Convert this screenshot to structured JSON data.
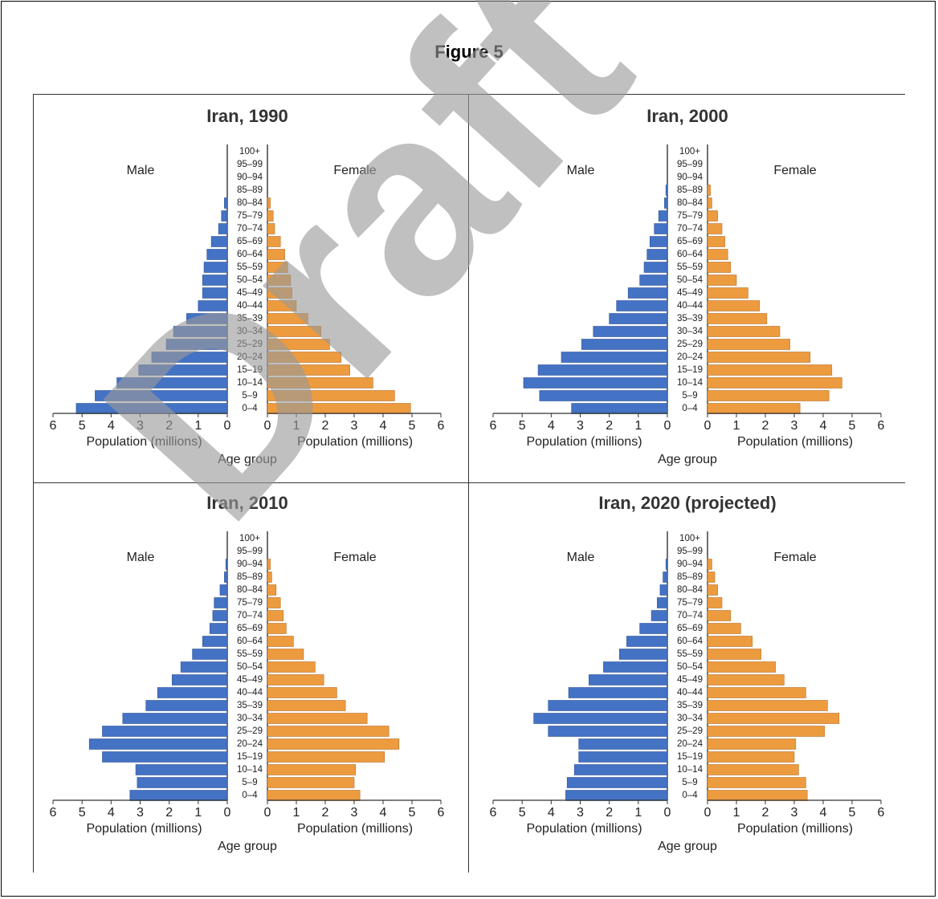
{
  "figure_title": "Figure 5",
  "watermark": "Draft",
  "colors": {
    "male": "#4472c4",
    "female": "#ed9b3f",
    "text": "#222222",
    "watermark": "#9a9a9a"
  },
  "chart_data": [
    {
      "type": "bar",
      "title": "Iran, 1990",
      "male_label": "Male",
      "female_label": "Female",
      "xlabel_left": "Population (millions)",
      "xlabel_right": "Population (millions)",
      "center_label": "Age group",
      "xlim": [
        0,
        6
      ],
      "xticks": [
        "6",
        "5",
        "4",
        "3",
        "2",
        "1",
        "0"
      ],
      "xticks_right": [
        "0",
        "1",
        "2",
        "3",
        "4",
        "5",
        "6"
      ],
      "categories": [
        "100+",
        "95–99",
        "90–94",
        "85–89",
        "80–84",
        "75–79",
        "70–74",
        "65–69",
        "60–64",
        "55–59",
        "50–54",
        "45–49",
        "40–44",
        "35–39",
        "30–34",
        "25–29",
        "20–24",
        "15–19",
        "10–14",
        "5–9",
        "0–4"
      ],
      "series": [
        {
          "name": "Male",
          "values": [
            0,
            0,
            0,
            0,
            0.1,
            0.2,
            0.3,
            0.55,
            0.7,
            0.8,
            0.85,
            0.85,
            1.0,
            1.4,
            1.85,
            2.1,
            2.6,
            3.05,
            3.8,
            4.55,
            5.2
          ]
        },
        {
          "name": "Female",
          "values": [
            0,
            0,
            0,
            0,
            0.1,
            0.2,
            0.25,
            0.45,
            0.6,
            0.7,
            0.8,
            0.85,
            1.0,
            1.4,
            1.85,
            2.15,
            2.55,
            2.85,
            3.65,
            4.4,
            4.95
          ]
        }
      ]
    },
    {
      "type": "bar",
      "title": "Iran, 2000",
      "male_label": "Male",
      "female_label": "Female",
      "xlabel_left": "Population (millions)",
      "xlabel_right": "Population (millions)",
      "center_label": "Age group",
      "xlim": [
        0,
        6
      ],
      "xticks": [
        "6",
        "5",
        "4",
        "3",
        "2",
        "1",
        "0"
      ],
      "xticks_right": [
        "0",
        "1",
        "2",
        "3",
        "4",
        "5",
        "6"
      ],
      "categories": [
        "100+",
        "95–99",
        "90–94",
        "85–89",
        "80–84",
        "75–79",
        "70–74",
        "65–69",
        "60–64",
        "55–59",
        "50–54",
        "45–49",
        "40–44",
        "35–39",
        "30–34",
        "25–29",
        "20–24",
        "15–19",
        "10–14",
        "5–9",
        "0–4"
      ],
      "series": [
        {
          "name": "Male",
          "values": [
            0,
            0,
            0,
            0.05,
            0.1,
            0.3,
            0.45,
            0.6,
            0.7,
            0.8,
            0.95,
            1.35,
            1.75,
            2.0,
            2.55,
            2.95,
            3.65,
            4.45,
            4.95,
            4.4,
            3.3
          ]
        },
        {
          "name": "Female",
          "values": [
            0,
            0,
            0,
            0.1,
            0.15,
            0.35,
            0.5,
            0.6,
            0.7,
            0.8,
            1.0,
            1.4,
            1.8,
            2.05,
            2.5,
            2.85,
            3.55,
            4.3,
            4.65,
            4.2,
            3.2
          ]
        }
      ]
    },
    {
      "type": "bar",
      "title": "Iran, 2010",
      "male_label": "Male",
      "female_label": "Female",
      "xlabel_left": "Population (millions)",
      "xlabel_right": "Population (millions)",
      "center_label": "Age group",
      "xlim": [
        0,
        6
      ],
      "xticks": [
        "6",
        "5",
        "4",
        "3",
        "2",
        "1",
        "0"
      ],
      "xticks_right": [
        "0",
        "1",
        "2",
        "3",
        "4",
        "5",
        "6"
      ],
      "categories": [
        "100+",
        "95–99",
        "90–94",
        "85–89",
        "80–84",
        "75–79",
        "70–74",
        "65–69",
        "60–64",
        "55–59",
        "50–54",
        "45–49",
        "40–44",
        "35–39",
        "30–34",
        "25–29",
        "20–24",
        "15–19",
        "10–14",
        "5–9",
        "0–4"
      ],
      "series": [
        {
          "name": "Male",
          "values": [
            0,
            0,
            0.05,
            0.1,
            0.25,
            0.45,
            0.5,
            0.6,
            0.85,
            1.2,
            1.6,
            1.9,
            2.4,
            2.8,
            3.6,
            4.3,
            4.75,
            4.3,
            3.15,
            3.1,
            3.35
          ]
        },
        {
          "name": "Female",
          "values": [
            0,
            0,
            0.1,
            0.15,
            0.3,
            0.45,
            0.55,
            0.65,
            0.9,
            1.25,
            1.65,
            1.95,
            2.4,
            2.7,
            3.45,
            4.2,
            4.55,
            4.05,
            3.05,
            3.0,
            3.2
          ]
        }
      ]
    },
    {
      "type": "bar",
      "title": "Iran, 2020 (projected)",
      "male_label": "Male",
      "female_label": "Female",
      "xlabel_left": "Population (millions)",
      "xlabel_right": "Population (millions)",
      "center_label": "Age group",
      "xlim": [
        0,
        6
      ],
      "xticks": [
        "6",
        "5",
        "4",
        "3",
        "2",
        "1",
        "0"
      ],
      "xticks_right": [
        "0",
        "1",
        "2",
        "3",
        "4",
        "5",
        "6"
      ],
      "categories": [
        "100+",
        "95–99",
        "90–94",
        "85–89",
        "80–84",
        "75–79",
        "70–74",
        "65–69",
        "60–64",
        "55–59",
        "50–54",
        "45–49",
        "40–44",
        "35–39",
        "30–34",
        "25–29",
        "20–24",
        "15–19",
        "10–14",
        "5–9",
        "0–4"
      ],
      "series": [
        {
          "name": "Male",
          "values": [
            0,
            0,
            0.05,
            0.15,
            0.25,
            0.35,
            0.55,
            0.95,
            1.4,
            1.65,
            2.2,
            2.7,
            3.4,
            4.1,
            4.6,
            4.1,
            3.05,
            3.05,
            3.2,
            3.45,
            3.5
          ]
        },
        {
          "name": "Female",
          "values": [
            0,
            0,
            0.15,
            0.25,
            0.35,
            0.5,
            0.8,
            1.15,
            1.55,
            1.85,
            2.35,
            2.65,
            3.4,
            4.15,
            4.55,
            4.05,
            3.05,
            3.0,
            3.15,
            3.4,
            3.45
          ]
        }
      ]
    }
  ]
}
